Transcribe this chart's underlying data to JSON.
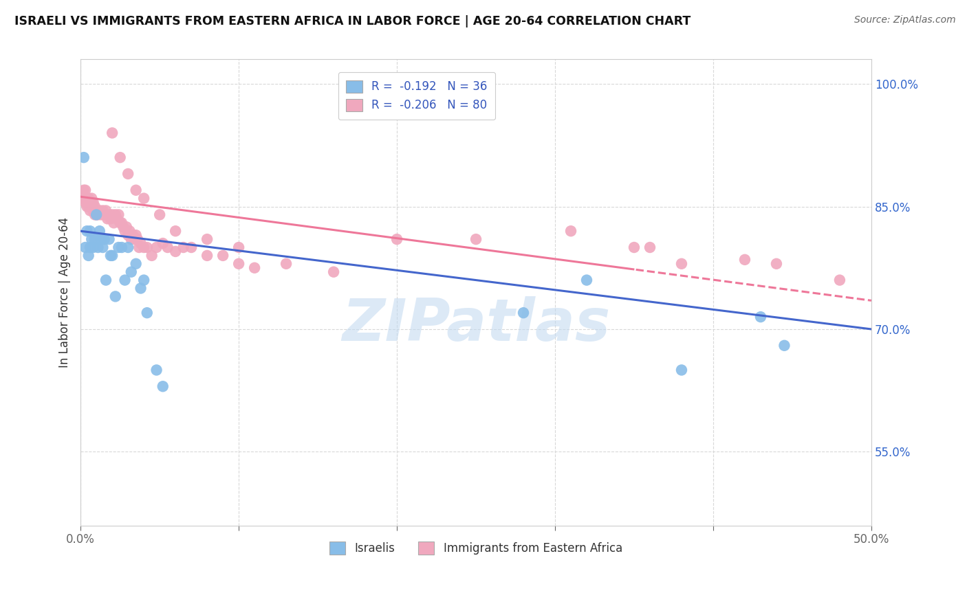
{
  "title": "ISRAELI VS IMMIGRANTS FROM EASTERN AFRICA IN LABOR FORCE | AGE 20-64 CORRELATION CHART",
  "source": "Source: ZipAtlas.com",
  "ylabel": "In Labor Force | Age 20-64",
  "xlim": [
    0.0,
    0.5
  ],
  "ylim": [
    0.46,
    1.03
  ],
  "yticks": [
    0.55,
    0.7,
    0.85,
    1.0
  ],
  "ytick_labels": [
    "55.0%",
    "70.0%",
    "85.0%",
    "100.0%"
  ],
  "xticks": [
    0.0,
    0.1,
    0.2,
    0.3,
    0.4,
    0.5
  ],
  "xtick_labels": [
    "0.0%",
    "",
    "",
    "",
    "",
    "50.0%"
  ],
  "background_color": "#ffffff",
  "grid_color": "#d8d8d8",
  "watermark_text": "ZIPatlas",
  "israelis_color": "#88bde8",
  "immigrants_color": "#f0a8be",
  "trend_israeli_color": "#4466cc",
  "trend_immigrant_color": "#ee7799",
  "legend_label_isr": "R =  -0.192   N = 36",
  "legend_label_imm": "R =  -0.206   N = 80",
  "bottom_label_isr": "Israelis",
  "bottom_label_imm": "Immigrants from Eastern Africa",
  "trend_isr_x0": 0.0,
  "trend_isr_y0": 0.82,
  "trend_isr_x1": 0.5,
  "trend_isr_y1": 0.7,
  "trend_imm_x0": 0.0,
  "trend_imm_y0": 0.862,
  "trend_imm_x1": 0.5,
  "trend_imm_y1": 0.735,
  "israelis_x": [
    0.002,
    0.003,
    0.004,
    0.005,
    0.006,
    0.006,
    0.007,
    0.008,
    0.009,
    0.01,
    0.011,
    0.012,
    0.013,
    0.014,
    0.015,
    0.016,
    0.018,
    0.019,
    0.02,
    0.022,
    0.024,
    0.026,
    0.028,
    0.03,
    0.032,
    0.035,
    0.038,
    0.04,
    0.042,
    0.048,
    0.052,
    0.28,
    0.32,
    0.38,
    0.43,
    0.445
  ],
  "israelis_y": [
    0.91,
    0.8,
    0.82,
    0.79,
    0.8,
    0.82,
    0.81,
    0.8,
    0.81,
    0.84,
    0.8,
    0.82,
    0.81,
    0.8,
    0.81,
    0.76,
    0.81,
    0.79,
    0.79,
    0.74,
    0.8,
    0.8,
    0.76,
    0.8,
    0.77,
    0.78,
    0.75,
    0.76,
    0.72,
    0.65,
    0.63,
    0.72,
    0.76,
    0.65,
    0.715,
    0.68
  ],
  "immigrants_x": [
    0.001,
    0.002,
    0.002,
    0.003,
    0.003,
    0.004,
    0.004,
    0.005,
    0.005,
    0.006,
    0.006,
    0.007,
    0.007,
    0.008,
    0.008,
    0.009,
    0.009,
    0.01,
    0.01,
    0.011,
    0.012,
    0.013,
    0.014,
    0.015,
    0.016,
    0.017,
    0.018,
    0.019,
    0.02,
    0.021,
    0.022,
    0.023,
    0.024,
    0.025,
    0.026,
    0.027,
    0.028,
    0.029,
    0.03,
    0.031,
    0.032,
    0.033,
    0.034,
    0.035,
    0.036,
    0.037,
    0.038,
    0.04,
    0.042,
    0.045,
    0.048,
    0.052,
    0.055,
    0.06,
    0.065,
    0.07,
    0.08,
    0.09,
    0.1,
    0.11,
    0.02,
    0.025,
    0.03,
    0.035,
    0.04,
    0.05,
    0.06,
    0.08,
    0.1,
    0.13,
    0.16,
    0.2,
    0.25,
    0.31,
    0.36,
    0.42,
    0.35,
    0.38,
    0.44,
    0.48
  ],
  "immigrants_y": [
    0.86,
    0.86,
    0.87,
    0.855,
    0.87,
    0.85,
    0.86,
    0.85,
    0.86,
    0.855,
    0.845,
    0.85,
    0.86,
    0.845,
    0.855,
    0.84,
    0.85,
    0.84,
    0.845,
    0.84,
    0.845,
    0.84,
    0.845,
    0.84,
    0.845,
    0.835,
    0.84,
    0.835,
    0.84,
    0.83,
    0.84,
    0.835,
    0.84,
    0.83,
    0.83,
    0.825,
    0.82,
    0.825,
    0.815,
    0.82,
    0.81,
    0.815,
    0.81,
    0.815,
    0.81,
    0.8,
    0.805,
    0.8,
    0.8,
    0.79,
    0.8,
    0.805,
    0.8,
    0.795,
    0.8,
    0.8,
    0.79,
    0.79,
    0.78,
    0.775,
    0.94,
    0.91,
    0.89,
    0.87,
    0.86,
    0.84,
    0.82,
    0.81,
    0.8,
    0.78,
    0.77,
    0.81,
    0.81,
    0.82,
    0.8,
    0.785,
    0.8,
    0.78,
    0.78,
    0.76
  ]
}
